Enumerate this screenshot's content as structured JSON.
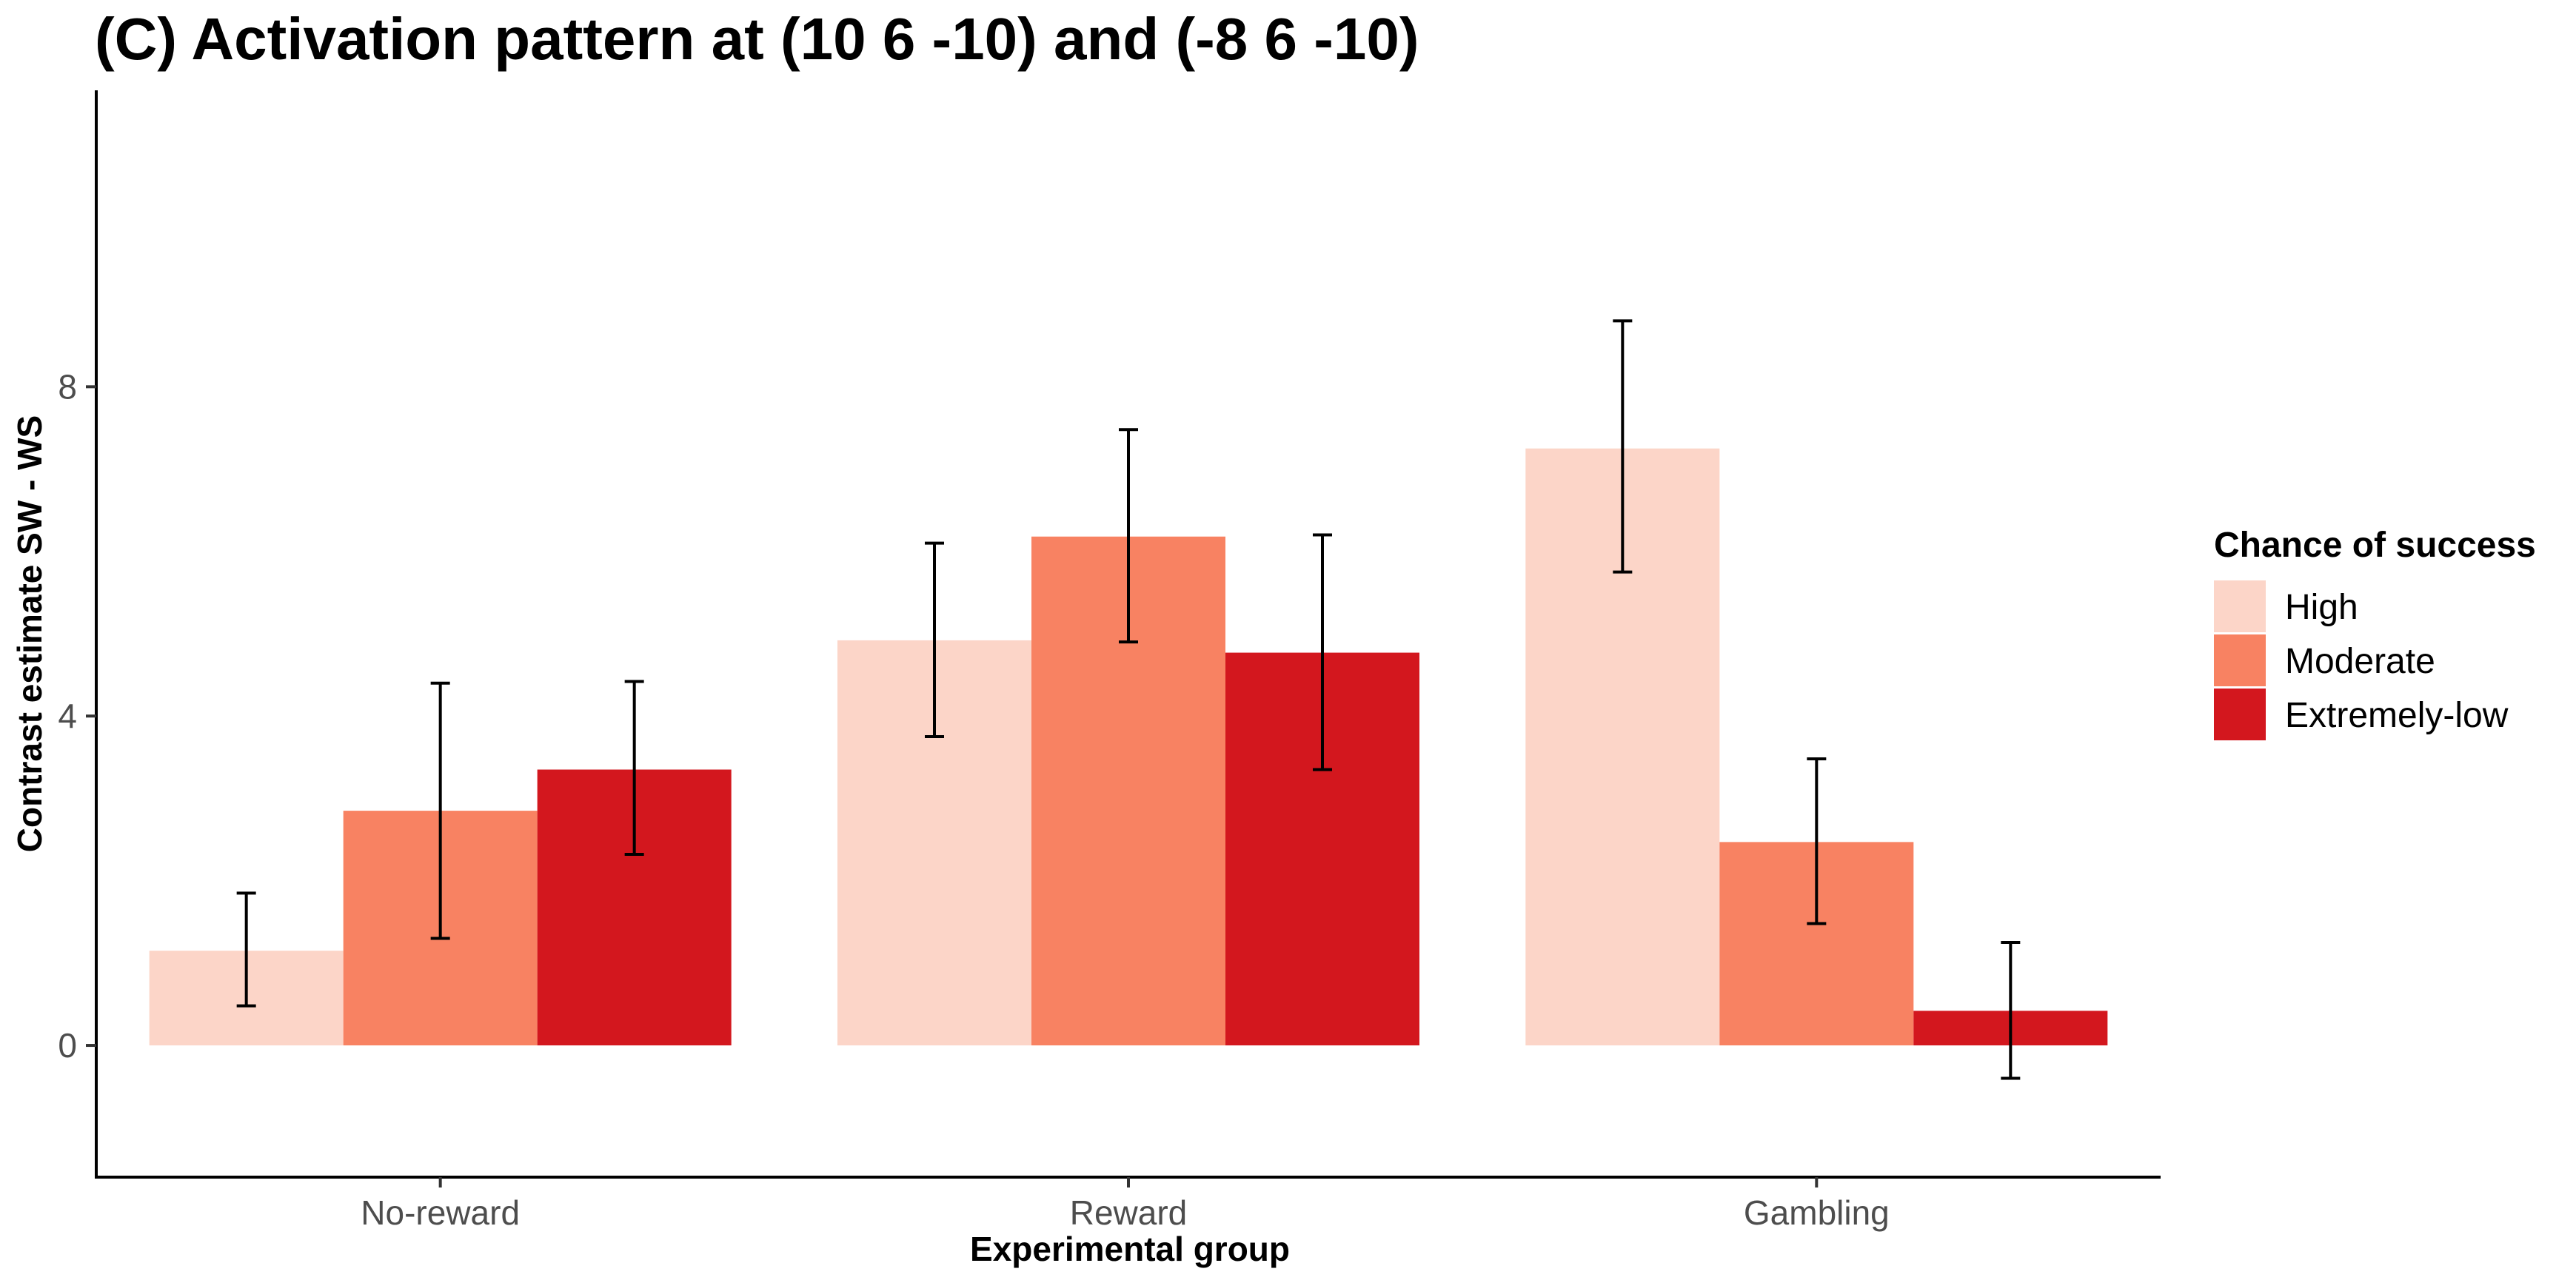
{
  "chart_data": {
    "type": "bar",
    "title": "(C) Activation pattern at (10 6 -10) and (-8 6 -10)",
    "xlabel": "Experimental group",
    "ylabel": "Contrast estimate SW - WS",
    "categories": [
      "No-reward",
      "Reward",
      "Gambling"
    ],
    "series": [
      {
        "name": "High",
        "color": "#FCD5C8",
        "values": [
          1.15,
          4.92,
          7.25
        ],
        "err_low": [
          0.48,
          3.75,
          5.75
        ],
        "err_high": [
          1.85,
          6.1,
          8.8
        ]
      },
      {
        "name": "Moderate",
        "color": "#F88262",
        "values": [
          2.85,
          6.18,
          2.47
        ],
        "err_low": [
          1.3,
          4.9,
          1.48
        ],
        "err_high": [
          4.4,
          7.48,
          3.48
        ]
      },
      {
        "name": "Extremely-low",
        "color": "#D3171E",
        "values": [
          3.35,
          4.77,
          0.42
        ],
        "err_low": [
          2.32,
          3.35,
          -0.4
        ],
        "err_high": [
          4.42,
          6.2,
          1.25
        ]
      }
    ],
    "y_ticks": [
      0,
      4,
      8
    ],
    "ylim": [
      -1.6,
      11.6
    ],
    "legend": {
      "title": "Chance of success",
      "placement": "right"
    },
    "grid": false
  }
}
